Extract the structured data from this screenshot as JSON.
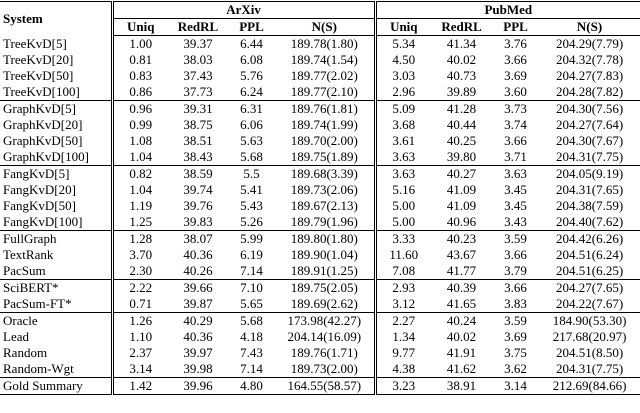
{
  "header": {
    "system": "System",
    "groups": [
      {
        "name": "ArXiv",
        "columns": [
          "Uniq",
          "RedRL",
          "PPL",
          "N(S)"
        ]
      },
      {
        "name": "PubMed",
        "columns": [
          "Uniq",
          "RedRL",
          "PPL",
          "N(S)"
        ]
      }
    ]
  },
  "table": {
    "sections": [
      [
        [
          "TreeKvD[5]",
          "1.00",
          "39.37",
          "6.44",
          "189.78(1.80)",
          "5.34",
          "41.34",
          "3.76",
          "204.29(7.79)"
        ],
        [
          "TreeKvD[20]",
          "0.81",
          "38.03",
          "6.08",
          "189.74(1.54)",
          "4.50",
          "40.02",
          "3.66",
          "204.32(7.78)"
        ],
        [
          "TreeKvD[50]",
          "0.83",
          "37.43",
          "5.76",
          "189.77(2.02)",
          "3.03",
          "40.73",
          "3.69",
          "204.27(7.83)"
        ],
        [
          "TreeKvD[100]",
          "0.86",
          "37.73",
          "6.24",
          "189.77(2.10)",
          "2.96",
          "39.89",
          "3.60",
          "204.28(7.82)"
        ]
      ],
      [
        [
          "GraphKvD[5]",
          "0.96",
          "39.31",
          "6.31",
          "189.76(1.81)",
          "5.09",
          "41.28",
          "3.73",
          "204.30(7.56)"
        ],
        [
          "GraphKvD[20]",
          "0.99",
          "38.75",
          "6.06",
          "189.74(1.99)",
          "3.68",
          "40.44",
          "3.74",
          "204.27(7.64)"
        ],
        [
          "GraphKvD[50]",
          "1.08",
          "38.51",
          "5.63",
          "189.70(2.00)",
          "3.61",
          "40.25",
          "3.66",
          "204.30(7.67)"
        ],
        [
          "GraphKvD[100]",
          "1.04",
          "38.43",
          "5.68",
          "189.75(1.89)",
          "3.63",
          "39.80",
          "3.71",
          "204.31(7.75)"
        ]
      ],
      [
        [
          "FangKvD[5]",
          "0.82",
          "38.59",
          "5.5",
          "189.68(3.39)",
          "3.63",
          "40.27",
          "3.63",
          "204.05(9.19)"
        ],
        [
          "FangKvD[20]",
          "1.04",
          "39.74",
          "5.41",
          "189.73(2.06)",
          "5.16",
          "41.09",
          "3.45",
          "204.31(7.65)"
        ],
        [
          "FangKvD[50]",
          "1.19",
          "39.76",
          "5.43",
          "189.67(2.13)",
          "5.00",
          "41.09",
          "3.45",
          "204.38(7.59)"
        ],
        [
          "FangKvD[100]",
          "1.25",
          "39.83",
          "5.26",
          "189.79(1.96)",
          "5.00",
          "40.96",
          "3.43",
          "204.40(7.62)"
        ]
      ],
      [
        [
          "FullGraph",
          "1.28",
          "38.07",
          "5.99",
          "189.80(1.80)",
          "3.33",
          "40.23",
          "3.59",
          "204.42(6.26)"
        ],
        [
          "TextRank",
          "3.70",
          "40.36",
          "6.19",
          "189.90(1.04)",
          "11.60",
          "43.67",
          "3.66",
          "204.51(6.24)"
        ],
        [
          "PacSum",
          "2.30",
          "40.26",
          "7.14",
          "189.91(1.25)",
          "7.08",
          "41.77",
          "3.79",
          "204.51(6.25)"
        ]
      ],
      [
        [
          "SciBERT*",
          "2.22",
          "39.66",
          "7.10",
          "189.75(2.05)",
          "2.93",
          "40.39",
          "3.66",
          "204.27(7.65)"
        ],
        [
          "PacSum-FT*",
          "0.71",
          "39.87",
          "5.65",
          "189.69(2.62)",
          "3.12",
          "41.65",
          "3.83",
          "204.22(7.67)"
        ]
      ],
      [
        [
          "Oracle",
          "1.26",
          "40.29",
          "5.68",
          "173.98(42.27)",
          "2.27",
          "40.24",
          "3.59",
          "184.90(53.30)"
        ],
        [
          "Lead",
          "1.10",
          "40.36",
          "4.18",
          "204.14(16.09)",
          "1.34",
          "40.02",
          "3.69",
          "217.68(20.97)"
        ],
        [
          "Random",
          "2.37",
          "39.97",
          "7.43",
          "189.76(1.71)",
          "9.77",
          "41.91",
          "3.75",
          "204.51(8.50)"
        ],
        [
          "Random-Wgt",
          "3.14",
          "39.98",
          "7.14",
          "189.73(2.00)",
          "4.38",
          "41.62",
          "3.62",
          "204.31(7.75)"
        ]
      ],
      [
        [
          "Gold Summary",
          "1.42",
          "39.96",
          "4.80",
          "164.55(58.57)",
          "3.23",
          "38.91",
          "3.14",
          "212.69(84.66)"
        ]
      ]
    ]
  }
}
